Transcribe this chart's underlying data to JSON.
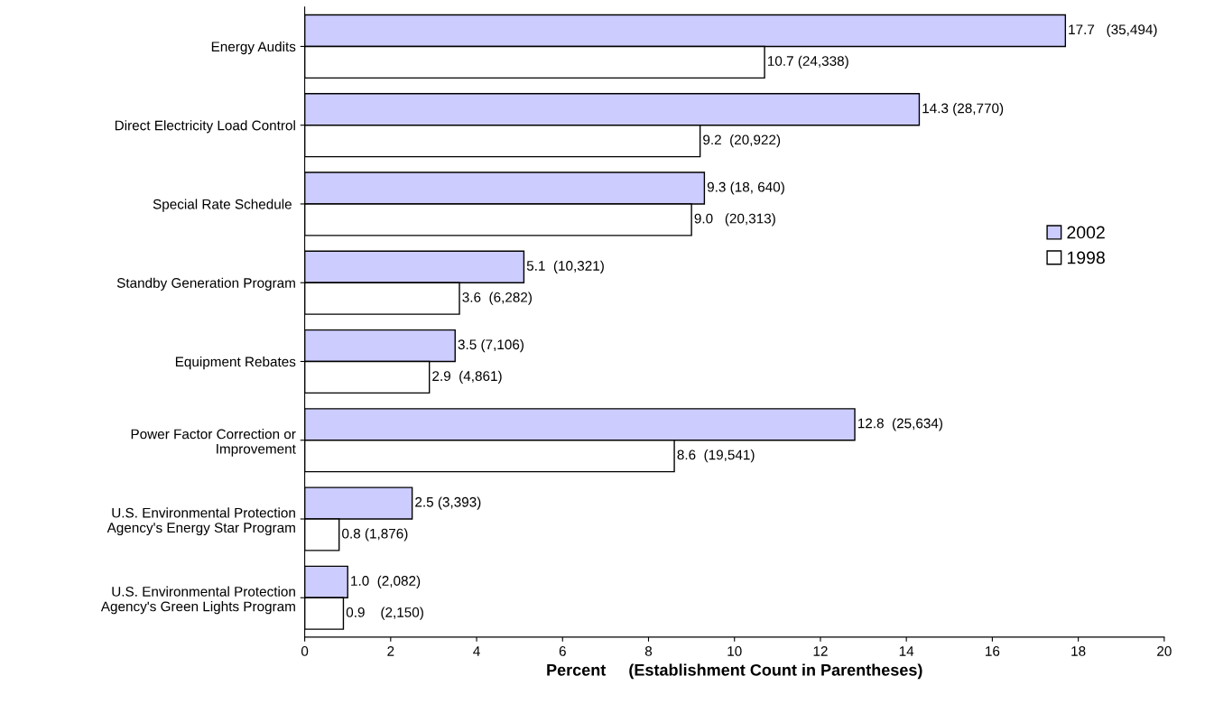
{
  "chart_data": {
    "type": "bar",
    "orientation": "horizontal",
    "xlabel": "Percent     (Establishment Count in Parentheses)",
    "categories": [
      "Energy Audits",
      "Direct Electricity Load Control",
      "Special Rate Schedule ",
      "Standby Generation Program",
      "Equipment Rebates",
      "Power Factor Correction or\nImprovement",
      "U.S. Environmental Protection\nAgency's Energy Star Program",
      "U.S. Environmental Protection\nAgency's Green Lights Program"
    ],
    "series": [
      {
        "name": "2002",
        "color": "#ccccff",
        "values": [
          17.7,
          14.3,
          9.3,
          5.1,
          3.5,
          12.8,
          2.5,
          1.0
        ],
        "value_labels": [
          "17.7   (35,494)",
          "14.3 (28,770)",
          "9.3 (18, 640)",
          "5.1  (10,321)",
          "3.5 (7,106)",
          "12.8  (25,634)",
          "2.5 (3,393)",
          "1.0  (2,082)"
        ]
      },
      {
        "name": "1998",
        "color": "#ffffff",
        "values": [
          10.7,
          9.2,
          9.0,
          3.6,
          2.9,
          8.6,
          0.8,
          0.9
        ],
        "value_labels": [
          "10.7 (24,338)",
          "9.2  (20,922)",
          "9.0   (20,313)",
          "3.6  (6,282)",
          "2.9  (4,861)",
          "8.6  (19,541)",
          "0.8 (1,876)",
          "0.9    (2,150)"
        ]
      }
    ],
    "xlim": [
      0,
      20
    ],
    "xticks": [
      0,
      2,
      4,
      6,
      8,
      10,
      12,
      14,
      16,
      18,
      20
    ],
    "grid": false,
    "legend": "right"
  }
}
